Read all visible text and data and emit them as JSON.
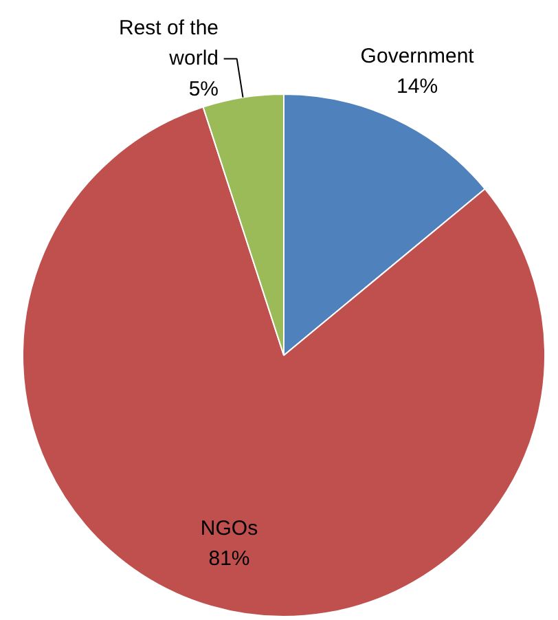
{
  "chart_data": {
    "type": "pie",
    "categories": [
      "Government",
      "NGOs",
      "Rest of the world"
    ],
    "values": [
      14,
      81,
      5
    ],
    "value_labels": [
      "14%",
      "81%",
      "5%"
    ],
    "colors": [
      "#4f81bd",
      "#c0504d",
      "#9bbb59"
    ]
  }
}
